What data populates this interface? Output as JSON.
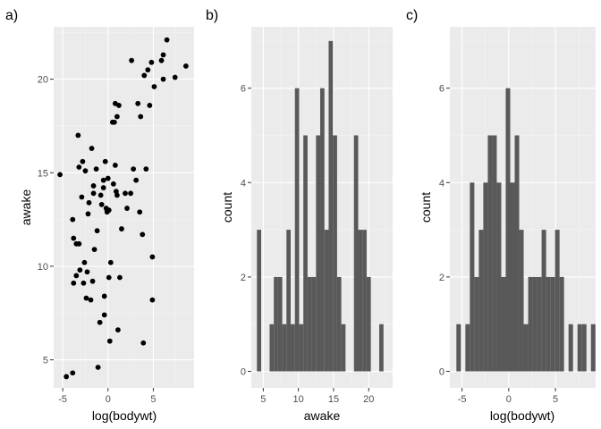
{
  "colors": {
    "panel_background": "#EBEBEB",
    "grid": "#FFFFFF",
    "bar_fill": "#595959",
    "point": "#000000",
    "tick_text": "#4D4D4D"
  },
  "chart_data": [
    {
      "tag": "a)",
      "type": "scatter",
      "xlabel": "log(bodywt)",
      "ylabel": "awake",
      "xlim": [
        -6,
        9.5
      ],
      "ylim": [
        3.5,
        22.8
      ],
      "xticks": [
        -5,
        0,
        5
      ],
      "yticks": [
        5,
        10,
        15,
        20
      ],
      "x_tick_labels": [
        "-5",
        "0",
        "5"
      ],
      "y_tick_labels": [
        "5",
        "10",
        "15",
        "20"
      ],
      "grid": true,
      "points": [
        {
          "x": -5.3,
          "y": 14.9
        },
        {
          "x": -4.6,
          "y": 4.1
        },
        {
          "x": -3.9,
          "y": 4.3
        },
        {
          "x": -3.9,
          "y": 12.5
        },
        {
          "x": -3.8,
          "y": 11.5
        },
        {
          "x": -3.8,
          "y": 9.1
        },
        {
          "x": -3.5,
          "y": 9.5
        },
        {
          "x": -3.5,
          "y": 11.2
        },
        {
          "x": -3.3,
          "y": 17.0
        },
        {
          "x": -3.2,
          "y": 15.3
        },
        {
          "x": -3.2,
          "y": 11.2
        },
        {
          "x": -3.1,
          "y": 9.8
        },
        {
          "x": -2.9,
          "y": 13.7
        },
        {
          "x": -2.8,
          "y": 15.6
        },
        {
          "x": -2.7,
          "y": 9.1
        },
        {
          "x": -2.6,
          "y": 10.2
        },
        {
          "x": -2.5,
          "y": 15.1
        },
        {
          "x": -2.4,
          "y": 8.3
        },
        {
          "x": -2.3,
          "y": 9.7
        },
        {
          "x": -2.2,
          "y": 12.8
        },
        {
          "x": -2.1,
          "y": 13.4
        },
        {
          "x": -1.9,
          "y": 8.2
        },
        {
          "x": -1.8,
          "y": 16.3
        },
        {
          "x": -1.7,
          "y": 9.2
        },
        {
          "x": -1.6,
          "y": 14.3
        },
        {
          "x": -1.6,
          "y": 13.9
        },
        {
          "x": -1.5,
          "y": 10.9
        },
        {
          "x": -1.3,
          "y": 15.2
        },
        {
          "x": -1.2,
          "y": 11.9
        },
        {
          "x": -1.1,
          "y": 4.6
        },
        {
          "x": -0.9,
          "y": 7.0
        },
        {
          "x": -0.8,
          "y": 13.8
        },
        {
          "x": -0.7,
          "y": 13.3
        },
        {
          "x": -0.5,
          "y": 14.6
        },
        {
          "x": -0.5,
          "y": 14.2
        },
        {
          "x": -0.4,
          "y": 7.4
        },
        {
          "x": -0.4,
          "y": 8.4
        },
        {
          "x": -0.3,
          "y": 15.6
        },
        {
          "x": -0.2,
          "y": 13.1
        },
        {
          "x": -0.1,
          "y": 13.0
        },
        {
          "x": -0.1,
          "y": 12.9
        },
        {
          "x": 0.0,
          "y": 14.7
        },
        {
          "x": 0.1,
          "y": 9.4
        },
        {
          "x": 0.1,
          "y": 13.0
        },
        {
          "x": 0.2,
          "y": 6.0
        },
        {
          "x": 0.3,
          "y": 10.2
        },
        {
          "x": 0.5,
          "y": 17.7
        },
        {
          "x": 0.6,
          "y": 14.4
        },
        {
          "x": 0.7,
          "y": 17.7
        },
        {
          "x": 0.8,
          "y": 18.7
        },
        {
          "x": 0.8,
          "y": 15.4
        },
        {
          "x": 0.9,
          "y": 14.0
        },
        {
          "x": 1.0,
          "y": 18.0
        },
        {
          "x": 1.0,
          "y": 13.8
        },
        {
          "x": 1.1,
          "y": 6.6
        },
        {
          "x": 1.2,
          "y": 18.6
        },
        {
          "x": 1.3,
          "y": 9.4
        },
        {
          "x": 1.5,
          "y": 12.0
        },
        {
          "x": 1.9,
          "y": 13.9
        },
        {
          "x": 2.1,
          "y": 13.1
        },
        {
          "x": 2.5,
          "y": 13.9
        },
        {
          "x": 2.6,
          "y": 21.0
        },
        {
          "x": 2.8,
          "y": 15.2
        },
        {
          "x": 3.1,
          "y": 14.6
        },
        {
          "x": 3.3,
          "y": 18.7
        },
        {
          "x": 3.5,
          "y": 12.9
        },
        {
          "x": 3.6,
          "y": 18.0
        },
        {
          "x": 3.8,
          "y": 11.7
        },
        {
          "x": 3.9,
          "y": 5.9
        },
        {
          "x": 4.0,
          "y": 20.2
        },
        {
          "x": 4.2,
          "y": 15.2
        },
        {
          "x": 4.4,
          "y": 20.5
        },
        {
          "x": 4.6,
          "y": 18.6
        },
        {
          "x": 4.8,
          "y": 20.9
        },
        {
          "x": 4.9,
          "y": 8.2
        },
        {
          "x": 4.9,
          "y": 10.5
        },
        {
          "x": 5.1,
          "y": 19.6
        },
        {
          "x": 5.9,
          "y": 21.0
        },
        {
          "x": 6.1,
          "y": 21.3
        },
        {
          "x": 6.1,
          "y": 20.0
        },
        {
          "x": 6.5,
          "y": 22.1
        },
        {
          "x": 7.4,
          "y": 20.1
        },
        {
          "x": 8.6,
          "y": 20.7
        }
      ]
    },
    {
      "tag": "b)",
      "type": "bar",
      "xlabel": "awake",
      "ylabel": "count",
      "xlim": [
        3.3,
        23.4
      ],
      "ylim": [
        -0.35,
        7.3
      ],
      "xticks": [
        5,
        10,
        15,
        20
      ],
      "yticks": [
        0,
        2,
        4,
        6
      ],
      "x_tick_labels": [
        "5",
        "10",
        "15",
        "20"
      ],
      "y_tick_labels": [
        "0",
        "2",
        "4",
        "6"
      ],
      "grid": true,
      "bin_start": 4.1,
      "bin_width": 0.6,
      "counts": [
        3,
        0,
        0,
        1,
        2,
        2,
        1,
        3,
        1,
        6,
        1,
        5,
        2,
        2,
        5,
        6,
        3,
        7,
        5,
        2,
        1,
        0,
        0,
        5,
        3,
        3,
        2,
        0,
        0,
        1
      ]
    },
    {
      "tag": "c)",
      "type": "bar",
      "xlabel": "log(bodywt)",
      "ylabel": "count",
      "xlim": [
        -6.3,
        9.3
      ],
      "ylim": [
        -0.35,
        7.3
      ],
      "xticks": [
        -5,
        0,
        5
      ],
      "yticks": [
        0,
        2,
        4,
        6
      ],
      "x_tick_labels": [
        "-5",
        "0",
        "5"
      ],
      "y_tick_labels": [
        "0",
        "2",
        "4",
        "6"
      ],
      "grid": true,
      "bin_start": -5.6,
      "bin_width": 0.48,
      "counts": [
        1,
        0,
        1,
        4,
        2,
        3,
        4,
        5,
        5,
        4,
        2,
        6,
        4,
        5,
        3,
        1,
        2,
        2,
        2,
        3,
        2,
        2,
        3,
        2,
        0,
        1,
        0,
        1,
        1,
        0,
        1
      ]
    }
  ]
}
